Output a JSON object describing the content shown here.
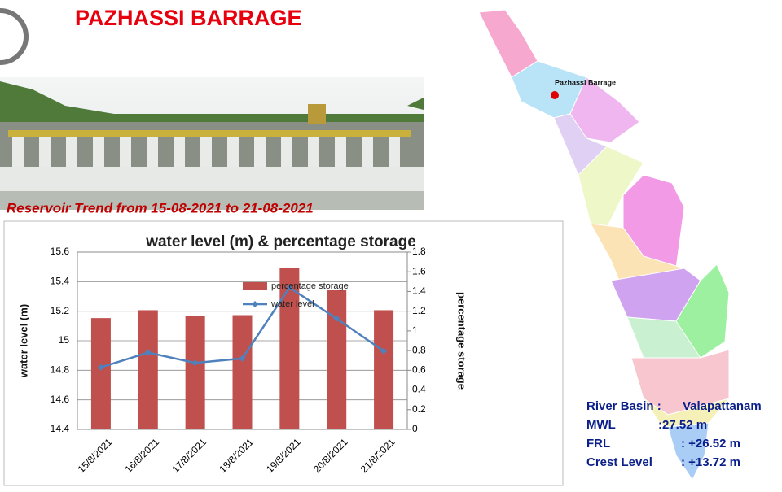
{
  "title": "PAZHASSI  BARRAGE",
  "trend_title": "Reservoir Trend from 15-08-2021 to 21-08-2021",
  "chart_data": {
    "type": "combo",
    "title": "water level (m) & percentage storage",
    "categories": [
      "15/8/2021",
      "16/8/2021",
      "17/8/2021",
      "18/8/2021",
      "19/8/2021",
      "20/8/2021",
      "21/8/2021"
    ],
    "series": [
      {
        "name": "percentage storage",
        "type": "bar",
        "color": "#c0504d",
        "axis": "y2",
        "values": [
          1.13,
          1.21,
          1.15,
          1.16,
          1.64,
          1.42,
          1.21
        ]
      },
      {
        "name": "water level",
        "type": "line",
        "color": "#4f81bd",
        "values": [
          14.82,
          14.92,
          14.85,
          14.88,
          15.36,
          15.15,
          14.93
        ]
      }
    ],
    "ylabel": "water level (m)",
    "y2label": "percentage storage",
    "ylim": [
      14.4,
      15.6
    ],
    "yticks": [
      14.4,
      14.6,
      14.8,
      15,
      15.2,
      15.4,
      15.6
    ],
    "y2lim": [
      0,
      1.8
    ],
    "y2ticks": [
      0,
      0.2,
      0.4,
      0.6,
      0.8,
      1,
      1.2,
      1.4,
      1.6,
      1.8
    ],
    "grid": true
  },
  "map": {
    "marker_label": "Pazhassi Barrage"
  },
  "info": [
    {
      "label": "River Basin :",
      "value": "Valapattanam"
    },
    {
      "label": "MWL",
      "value": ":27.52 m"
    },
    {
      "label": "FRL",
      "value": ": +26.52 m"
    },
    {
      "label": "Crest Level",
      "value": ": +13.72 m"
    }
  ]
}
